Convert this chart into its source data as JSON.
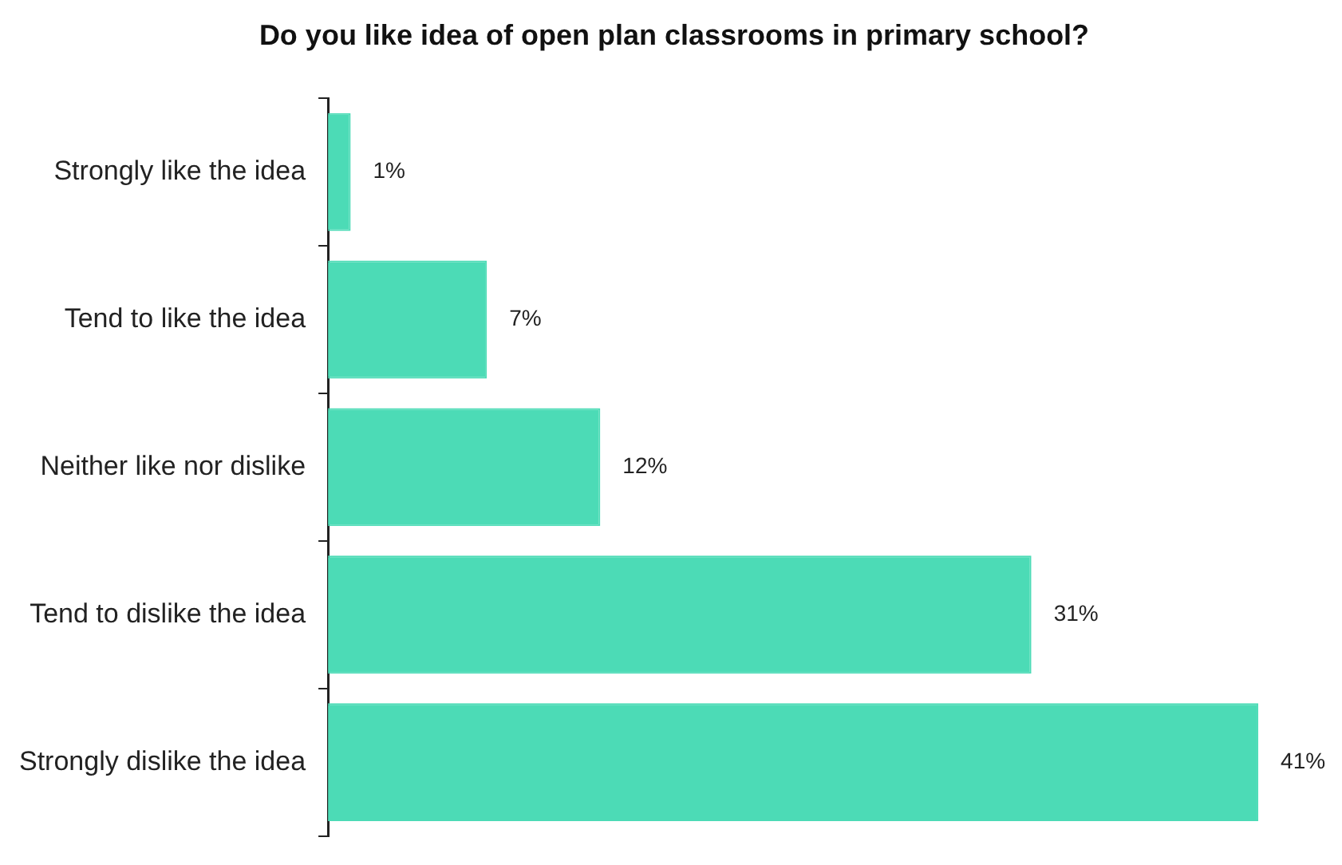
{
  "chart_data": {
    "type": "bar",
    "orientation": "horizontal",
    "title": "Do you like idea of open plan classrooms in primary school?",
    "categories": [
      "Strongly like the idea",
      "Tend to like the idea",
      "Neither like nor dislike",
      "Tend to dislike the idea",
      "Strongly dislike the idea"
    ],
    "values": [
      1,
      7,
      12,
      31,
      41
    ],
    "value_labels": [
      "1%",
      "7%",
      "12%",
      "31%",
      "41%"
    ],
    "color": "#4cdbb6",
    "legend": false
  }
}
